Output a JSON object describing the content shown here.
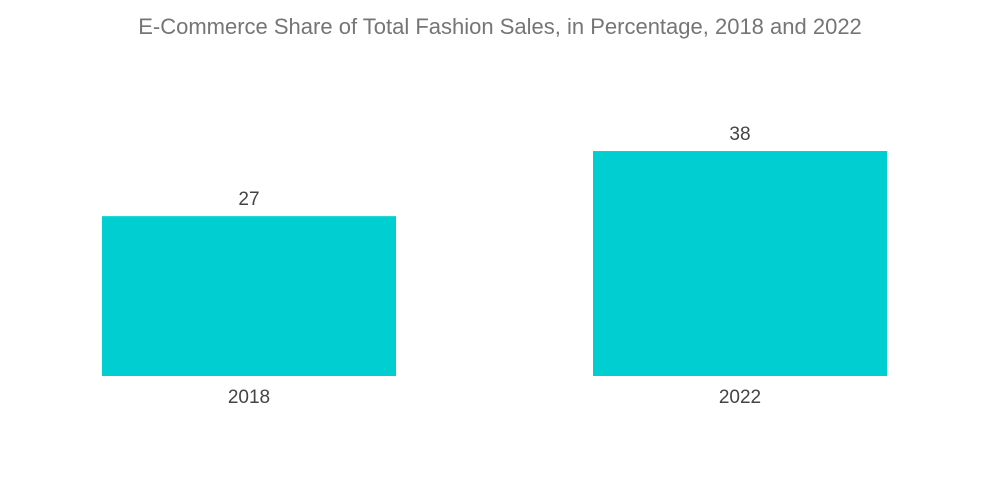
{
  "chart_data": {
    "type": "bar",
    "title": "E-Commerce Share of Total Fashion Sales, in Percentage, 2018 and 2022",
    "categories": [
      "2018",
      "2022"
    ],
    "values": [
      27,
      38
    ],
    "xlabel": "",
    "ylabel": "",
    "ylim": [
      0,
      40
    ],
    "grid": false,
    "legend": "none",
    "colors": {
      "bar": "#00CED1"
    }
  }
}
